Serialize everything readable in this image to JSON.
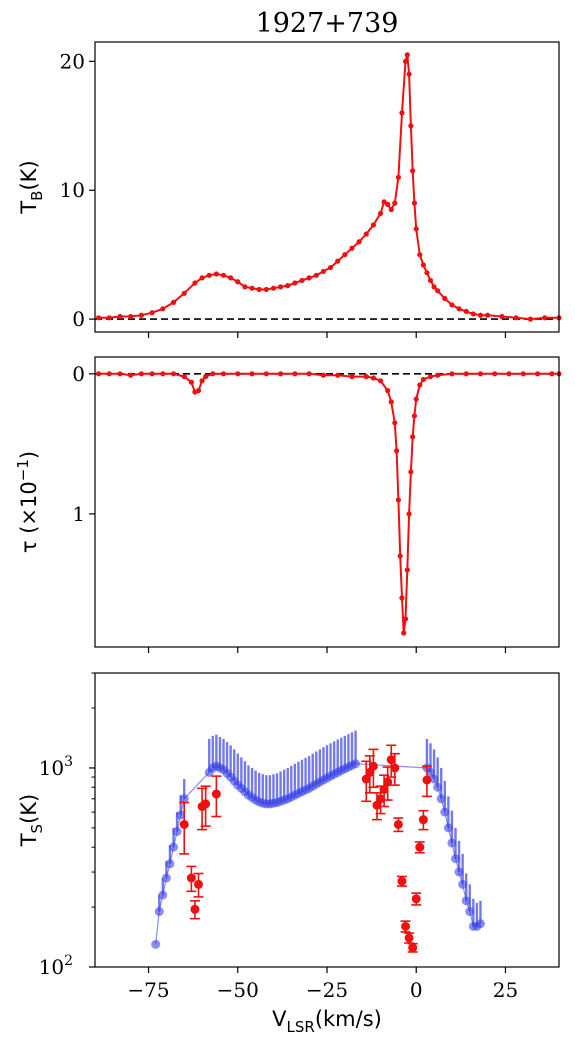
{
  "chart_data": [
    {
      "type": "line",
      "title": "1927+739",
      "xlabel": "",
      "ylabel": "T_B(K)",
      "ylabel_main": "T",
      "ylabel_sub": "B",
      "ylabel_tail": "(K)",
      "xlim": [
        -90,
        40
      ],
      "ylim": [
        -1,
        21.5
      ],
      "yticks": [
        {
          "v": 0,
          "label": "0"
        },
        {
          "v": 10,
          "label": "10"
        },
        {
          "v": 20,
          "label": "20"
        }
      ],
      "hline": 0,
      "color": "#ee1111",
      "series": [
        {
          "x": [
            -89,
            -86,
            -83,
            -80,
            -77,
            -74,
            -71,
            -68,
            -65,
            -62,
            -60,
            -58,
            -56,
            -54,
            -52,
            -50,
            -48,
            -46,
            -44,
            -42,
            -40,
            -38,
            -36,
            -34,
            -32,
            -30,
            -28,
            -26,
            -24,
            -22,
            -20,
            -18,
            -16,
            -14,
            -12,
            -10,
            -9,
            -8,
            -7,
            -6,
            -5,
            -4,
            -3,
            -2.5,
            -2,
            -1.5,
            -1,
            -0.5,
            0,
            1,
            2,
            3,
            4,
            5,
            6,
            8,
            10,
            12,
            14,
            16,
            18,
            20,
            24,
            28,
            32,
            36,
            40
          ],
          "y": [
            0.1,
            0.1,
            0.2,
            0.2,
            0.3,
            0.5,
            0.8,
            1.3,
            2.0,
            2.8,
            3.2,
            3.4,
            3.5,
            3.4,
            3.2,
            2.9,
            2.5,
            2.4,
            2.3,
            2.3,
            2.4,
            2.5,
            2.6,
            2.8,
            3.0,
            3.2,
            3.4,
            3.7,
            4.0,
            4.5,
            5.0,
            5.5,
            6.0,
            6.6,
            7.3,
            8.2,
            9.1,
            8.9,
            8.5,
            9.0,
            11.0,
            16.0,
            20.0,
            20.5,
            19.0,
            15.0,
            11.5,
            9.0,
            7.0,
            5.0,
            4.2,
            3.6,
            3.0,
            2.5,
            2.2,
            1.6,
            1.1,
            0.8,
            0.6,
            0.4,
            0.3,
            0.3,
            0.2,
            0.1,
            0.0,
            0.1,
            0.1
          ]
        }
      ]
    },
    {
      "type": "line",
      "title": "",
      "xlabel": "",
      "ylabel": "τ (×10⁻¹)",
      "ylabel_main": "τ (×10",
      "ylabel_sup": "−1",
      "ylabel_tail": ")",
      "xlim": [
        -90,
        40
      ],
      "ylim": [
        1.95,
        -0.12
      ],
      "yticks": [
        {
          "v": 0,
          "label": "0"
        },
        {
          "v": 1,
          "label": "1"
        }
      ],
      "hline": 0,
      "color": "#ee1111",
      "series": [
        {
          "x": [
            -89,
            -86,
            -83,
            -80,
            -77,
            -74,
            -71,
            -68,
            -65,
            -63,
            -62,
            -61,
            -60,
            -59,
            -57,
            -54,
            -50,
            -46,
            -42,
            -38,
            -34,
            -30,
            -26,
            -22,
            -18,
            -14,
            -12,
            -10,
            -8,
            -7,
            -6,
            -5.5,
            -5,
            -4.5,
            -4,
            -3.5,
            -3,
            -2.5,
            -2,
            -1.5,
            -1,
            -0.5,
            0,
            1,
            2,
            4,
            6,
            10,
            14,
            18,
            22,
            26,
            30,
            34,
            38,
            40
          ],
          "y": [
            0,
            0,
            0,
            0.01,
            0,
            0,
            0,
            0,
            0.02,
            0.06,
            0.13,
            0.12,
            0.05,
            0.02,
            0,
            0,
            0,
            0,
            0,
            0,
            0,
            0,
            0.01,
            0.01,
            0.02,
            0.02,
            0.03,
            0.05,
            0.12,
            0.2,
            0.35,
            0.55,
            0.9,
            1.3,
            1.6,
            1.85,
            1.75,
            1.4,
            1.0,
            0.7,
            0.45,
            0.3,
            0.18,
            0.08,
            0.04,
            0.02,
            0.01,
            0,
            0,
            0,
            0,
            0,
            0,
            0,
            0,
            0
          ]
        }
      ]
    },
    {
      "type": "scatter",
      "title": "",
      "xlabel": "V_LSR(km/s)",
      "xlabel_main": "V",
      "xlabel_sub": "LSR",
      "xlabel_tail": "(km/s)",
      "ylabel": "T_S(K)",
      "ylabel_main": "T",
      "ylabel_sub": "S",
      "ylabel_tail": "(K)",
      "yscale": "log",
      "xlim": [
        -90,
        40
      ],
      "ylim": [
        100,
        3000
      ],
      "xticks": [
        -75,
        -50,
        -25,
        0,
        25
      ],
      "xtick_labels": [
        "−75",
        "−50",
        "−25",
        "0",
        "25"
      ],
      "yticks": [
        {
          "v": 100,
          "label": "10",
          "sup": "2"
        },
        {
          "v": 1000,
          "label": "10",
          "sup": "3"
        }
      ],
      "series": [
        {
          "color": "#3a43e6",
          "x": [
            -73,
            -72,
            -71,
            -70,
            -69,
            -68,
            -67,
            -66,
            -65,
            -58,
            -57,
            -56,
            -55,
            -54,
            -53,
            -52,
            -51,
            -50,
            -49,
            -48,
            -47,
            -46,
            -45,
            -44,
            -43,
            -42,
            -41,
            -40,
            -39,
            -38,
            -37,
            -36,
            -35,
            -34,
            -33,
            -32,
            -31,
            -30,
            -29,
            -28,
            -27,
            -26,
            -25,
            -24,
            -23,
            -22,
            -21,
            -20,
            -19,
            -18,
            -17,
            3,
            4,
            5,
            6,
            7,
            8,
            9,
            10,
            11,
            12,
            13,
            14,
            15,
            16,
            17,
            18
          ],
          "y": [
            130,
            190,
            230,
            280,
            330,
            400,
            480,
            580,
            700,
            950,
            1000,
            1020,
            1000,
            980,
            940,
            900,
            860,
            820,
            790,
            760,
            730,
            710,
            690,
            675,
            665,
            660,
            660,
            665,
            670,
            680,
            690,
            700,
            715,
            730,
            745,
            760,
            775,
            790,
            810,
            830,
            850,
            870,
            890,
            910,
            930,
            950,
            970,
            990,
            1010,
            1030,
            1050,
            1000,
            950,
            880,
            800,
            700,
            600,
            500,
            420,
            350,
            300,
            260,
            215,
            190,
            160,
            160,
            165
          ],
          "err_lo": [
            0,
            0,
            0,
            0,
            0,
            0,
            0,
            0,
            0,
            0,
            0,
            0,
            0,
            0,
            0,
            0,
            0,
            0,
            0,
            0,
            0,
            0,
            0,
            0,
            0,
            0,
            0,
            0,
            0,
            0,
            0,
            0,
            0,
            0,
            0,
            0,
            0,
            0,
            0,
            0,
            0,
            0,
            0,
            0,
            0,
            0,
            0,
            0,
            0,
            0,
            0,
            0,
            0,
            0,
            0,
            0,
            0,
            0,
            0,
            0,
            0,
            0,
            0,
            0,
            0,
            0,
            0
          ],
          "err_hi": [
            0,
            40,
            50,
            60,
            80,
            100,
            120,
            150,
            180,
            450,
            450,
            450,
            430,
            420,
            410,
            400,
            380,
            360,
            340,
            320,
            300,
            290,
            280,
            270,
            265,
            260,
            260,
            265,
            270,
            280,
            290,
            300,
            310,
            320,
            330,
            340,
            350,
            360,
            370,
            380,
            390,
            400,
            410,
            420,
            430,
            440,
            450,
            460,
            470,
            480,
            490,
            400,
            380,
            360,
            330,
            300,
            260,
            220,
            190,
            150,
            130,
            110,
            80,
            70,
            60,
            50,
            50
          ]
        },
        {
          "color": "#ee1111",
          "x": [
            -65,
            -63,
            -62,
            -61,
            -60,
            -59,
            -56,
            -14,
            -13,
            -12,
            -11,
            -10,
            -9,
            -8,
            -7,
            -6,
            -5,
            -4,
            -3,
            -2,
            -1,
            0,
            1,
            2,
            3
          ],
          "y": [
            520,
            280,
            195,
            260,
            640,
            660,
            740,
            880,
            950,
            1020,
            650,
            700,
            780,
            850,
            1100,
            1000,
            520,
            270,
            160,
            140,
            125,
            220,
            400,
            550,
            870
          ],
          "err": [
            150,
            40,
            20,
            35,
            150,
            150,
            170,
            200,
            200,
            220,
            100,
            110,
            140,
            160,
            200,
            180,
            40,
            15,
            10,
            8,
            6,
            15,
            25,
            60,
            150
          ]
        }
      ]
    }
  ]
}
